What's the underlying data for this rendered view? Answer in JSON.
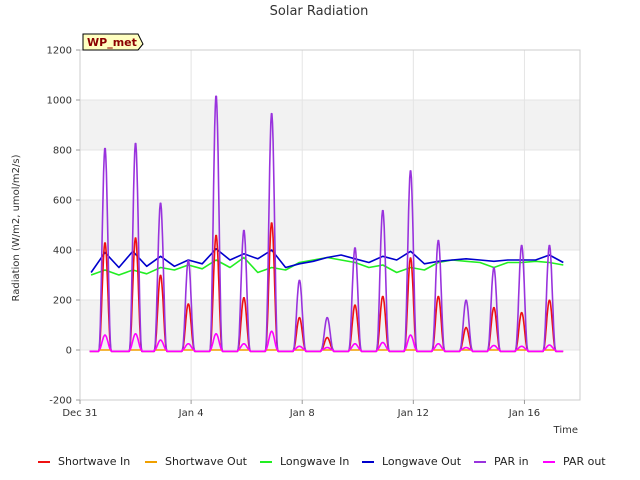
{
  "chart_data": {
    "type": "line",
    "title": "Solar Radiation",
    "xlabel": "Time",
    "ylabel": "Radiation (W/m2, umol/m2/s)",
    "site_badge": "WP_met",
    "xlim": [
      0,
      18
    ],
    "ylim": [
      -200,
      1200
    ],
    "y_ticks": [
      -200,
      0,
      200,
      400,
      600,
      800,
      1000,
      1200
    ],
    "x_ticks": [
      {
        "day": 0,
        "label": "Dec 31"
      },
      {
        "day": 4,
        "label": "Jan 4"
      },
      {
        "day": 8,
        "label": "Jan 8"
      },
      {
        "day": 12,
        "label": "Jan 12"
      },
      {
        "day": 16,
        "label": "Jan 16"
      }
    ],
    "grid": true,
    "legend_position": "bottom",
    "peak_days": [
      0.9,
      2.0,
      2.9,
      3.9,
      4.9,
      5.9,
      6.9,
      7.9,
      8.9,
      9.9,
      10.9,
      11.9,
      12.9,
      13.9,
      14.9,
      15.9,
      16.9
    ],
    "series": [
      {
        "name": "Shortwave In",
        "color": "#ee1111",
        "peaks": [
          430,
          450,
          300,
          185,
          460,
          210,
          510,
          130,
          50,
          180,
          215,
          370,
          215,
          90,
          170,
          150,
          200
        ]
      },
      {
        "name": "Shortwave Out",
        "color": "#f0a000",
        "peaks": [
          0,
          0,
          0,
          0,
          0,
          0,
          0,
          0,
          0,
          0,
          0,
          0,
          0,
          0,
          0,
          0,
          0
        ]
      },
      {
        "name": "Longwave In",
        "color": "#22ee22",
        "x": [
          0.4,
          0.9,
          1.4,
          1.9,
          2.4,
          2.9,
          3.4,
          3.9,
          4.4,
          4.9,
          5.4,
          5.9,
          6.4,
          6.9,
          7.4,
          7.9,
          8.4,
          8.9,
          9.4,
          9.9,
          10.4,
          10.9,
          11.4,
          11.9,
          12.4,
          12.9,
          13.4,
          13.9,
          14.4,
          14.9,
          15.4,
          15.9,
          16.4,
          16.9,
          17.4
        ],
        "y": [
          300,
          320,
          300,
          320,
          305,
          330,
          320,
          340,
          325,
          360,
          330,
          370,
          310,
          330,
          320,
          350,
          360,
          370,
          360,
          350,
          330,
          340,
          310,
          330,
          320,
          350,
          360,
          355,
          350,
          330,
          350,
          350,
          355,
          350,
          340
        ]
      },
      {
        "name": "Longwave Out",
        "color": "#0000cc",
        "x": [
          0.4,
          0.9,
          1.4,
          1.9,
          2.4,
          2.9,
          3.4,
          3.9,
          4.4,
          4.9,
          5.4,
          5.9,
          6.4,
          6.9,
          7.4,
          7.9,
          8.4,
          8.9,
          9.4,
          9.9,
          10.4,
          10.9,
          11.4,
          11.9,
          12.4,
          12.9,
          13.4,
          13.9,
          14.4,
          14.9,
          15.4,
          15.9,
          16.4,
          16.9,
          17.4
        ],
        "y": [
          310,
          390,
          330,
          395,
          335,
          375,
          335,
          360,
          345,
          405,
          360,
          385,
          365,
          400,
          330,
          345,
          355,
          370,
          380,
          365,
          350,
          375,
          360,
          395,
          345,
          355,
          360,
          365,
          360,
          355,
          360,
          360,
          360,
          380,
          350
        ]
      },
      {
        "name": "PAR in",
        "color": "#9933dd",
        "peaks": [
          810,
          830,
          590,
          360,
          1020,
          480,
          950,
          280,
          130,
          410,
          560,
          720,
          440,
          200,
          330,
          420,
          420
        ]
      },
      {
        "name": "PAR out",
        "color": "#ff00ff",
        "peaks": [
          60,
          65,
          40,
          25,
          65,
          25,
          75,
          15,
          10,
          25,
          30,
          60,
          25,
          10,
          18,
          15,
          20
        ]
      }
    ]
  }
}
